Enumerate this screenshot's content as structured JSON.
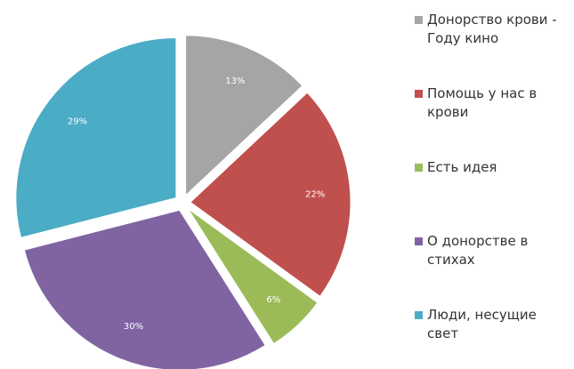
{
  "chart_data": {
    "type": "pie",
    "categories": [
      "Донорство крови - Году кино",
      "Помощь у нас в крови",
      "Есть идея",
      "О донорстве в стихах",
      "Люди, несущие свет"
    ],
    "values": [
      13,
      22,
      6,
      30,
      29
    ],
    "value_labels": [
      "13%",
      "22%",
      "6%",
      "30%",
      "29%"
    ],
    "colors": [
      "#a5a5a5",
      "#c0504d",
      "#9bbb59",
      "#8064a2",
      "#4bacc6"
    ],
    "legend": "right"
  }
}
